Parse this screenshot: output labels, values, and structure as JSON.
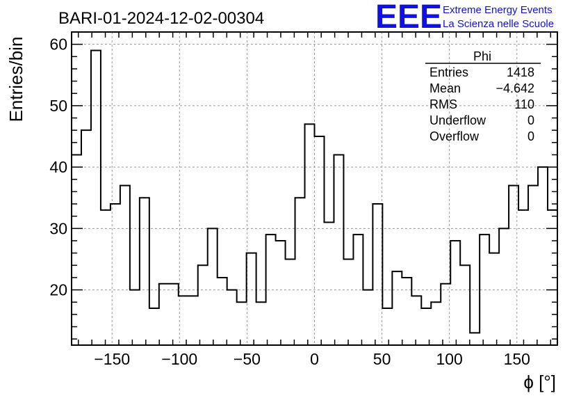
{
  "chart_data": {
    "type": "histogram",
    "title": "BARI-01-2024-12-02-00304",
    "xlabel": "ϕ [°]",
    "ylabel": "Entries/bin",
    "xlim": [
      -180,
      180
    ],
    "ylim": [
      11,
      62
    ],
    "grid": true,
    "bin_width": 7.2,
    "x_ticks": [
      -150,
      -100,
      -50,
      0,
      50,
      100,
      150
    ],
    "x_tick_labels": [
      "−150",
      "−100",
      "−50",
      "0",
      "50",
      "100",
      "150"
    ],
    "y_ticks": [
      20,
      30,
      40,
      50,
      60
    ],
    "y_tick_labels": [
      "20",
      "30",
      "40",
      "50",
      "60"
    ],
    "values": [
      42,
      46,
      59,
      33,
      34,
      37,
      20,
      35,
      17,
      21,
      21,
      19,
      19,
      24,
      30,
      22,
      20,
      18,
      26,
      18,
      29,
      28,
      25,
      35,
      47,
      45,
      31,
      42,
      25,
      29,
      20,
      34,
      17,
      23,
      22,
      19,
      17,
      18,
      21,
      28,
      24,
      13,
      29,
      26,
      30,
      37,
      33,
      37,
      40,
      33
    ],
    "stats": {
      "name": "Phi",
      "rows": [
        {
          "label": "Entries",
          "value": "1418"
        },
        {
          "label": "Mean",
          "value": "−4.642"
        },
        {
          "label": "RMS",
          "value": "110"
        },
        {
          "label": "Underflow",
          "value": "0"
        },
        {
          "label": "Overflow",
          "value": "0"
        }
      ]
    }
  },
  "logo": {
    "mark": "EEE",
    "line1": "Extreme Energy Events",
    "line2": "La Scienza nelle Scuole"
  },
  "colors": {
    "line": "#000000",
    "grid": "#9a9a9a",
    "logo": "#1010e0"
  }
}
